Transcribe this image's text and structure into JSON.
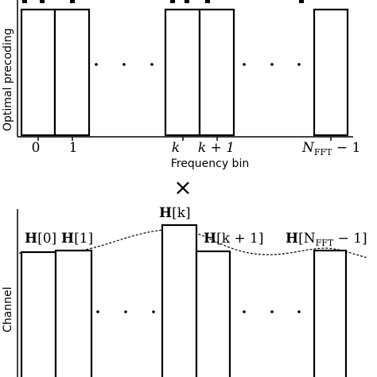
{
  "top_panel": {
    "ylabel": "Optimal precoding",
    "xlabel": "Frequency bin",
    "ellipsis": "· · ·",
    "ticks": {
      "t0": "0",
      "t1": "1",
      "tk": "k",
      "tk1": "k + 1",
      "tN_base": "N",
      "tN_sub": "FFT",
      "tN_tail": " − 1"
    }
  },
  "operator": "×",
  "bottom_panel": {
    "ylabel": "Channel",
    "ellipsis": "· · ·",
    "labels": {
      "h0_H": "H",
      "h0_idx": "[0]",
      "h1_H": "H",
      "h1_idx": "[1]",
      "hk_H": "H",
      "hk_idx": "[k]",
      "hk1_H": "H",
      "hk1_idx": "[k + 1]",
      "hN_H": "H",
      "hN_open": "[N",
      "hN_sub": "FFT",
      "hN_close": " − 1]"
    }
  }
}
